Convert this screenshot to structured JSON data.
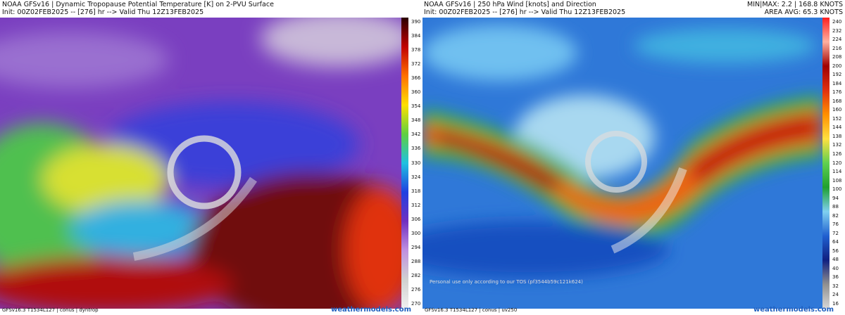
{
  "left": {
    "title": "NOAA GFSv16 | Dynamic Tropopause Potential Temperature [K] on 2-PVU Surface",
    "init": "Init: 00Z02FEB2025 -- [276] hr --> Valid Thu 12Z13FEB2025",
    "colorbar": [
      390,
      384,
      378,
      372,
      366,
      360,
      354,
      348,
      342,
      336,
      330,
      324,
      318,
      312,
      306,
      300,
      294,
      288,
      282,
      276,
      270
    ],
    "footer": "GFSv16.3 T1534L127 | conus | dyntrop",
    "brand": "weathermodels.com"
  },
  "right": {
    "title": "NOAA GFSv16 | 250 hPa Wind [knots] and Direction",
    "init": "Init: 00Z02FEB2025 -- [276] hr --> Valid Thu 12Z13FEB2025",
    "minmax": "MIN|MAX: 2.2 | 168.8 KNOTS",
    "avg": "AREA AVG: 65.3 KNOTS",
    "colorbar": [
      240,
      232,
      224,
      216,
      208,
      200,
      192,
      184,
      176,
      168,
      160,
      152,
      144,
      138,
      132,
      126,
      120,
      114,
      108,
      100,
      94,
      88,
      82,
      76,
      72,
      64,
      56,
      48,
      40,
      36,
      32,
      24,
      16
    ],
    "watermark": "Personal use only according to our TOS (pf3544b59c121k624)",
    "footer": "GFSv16.3 T1534L127 | conus | uv250",
    "brand": "weathermodels.com"
  }
}
